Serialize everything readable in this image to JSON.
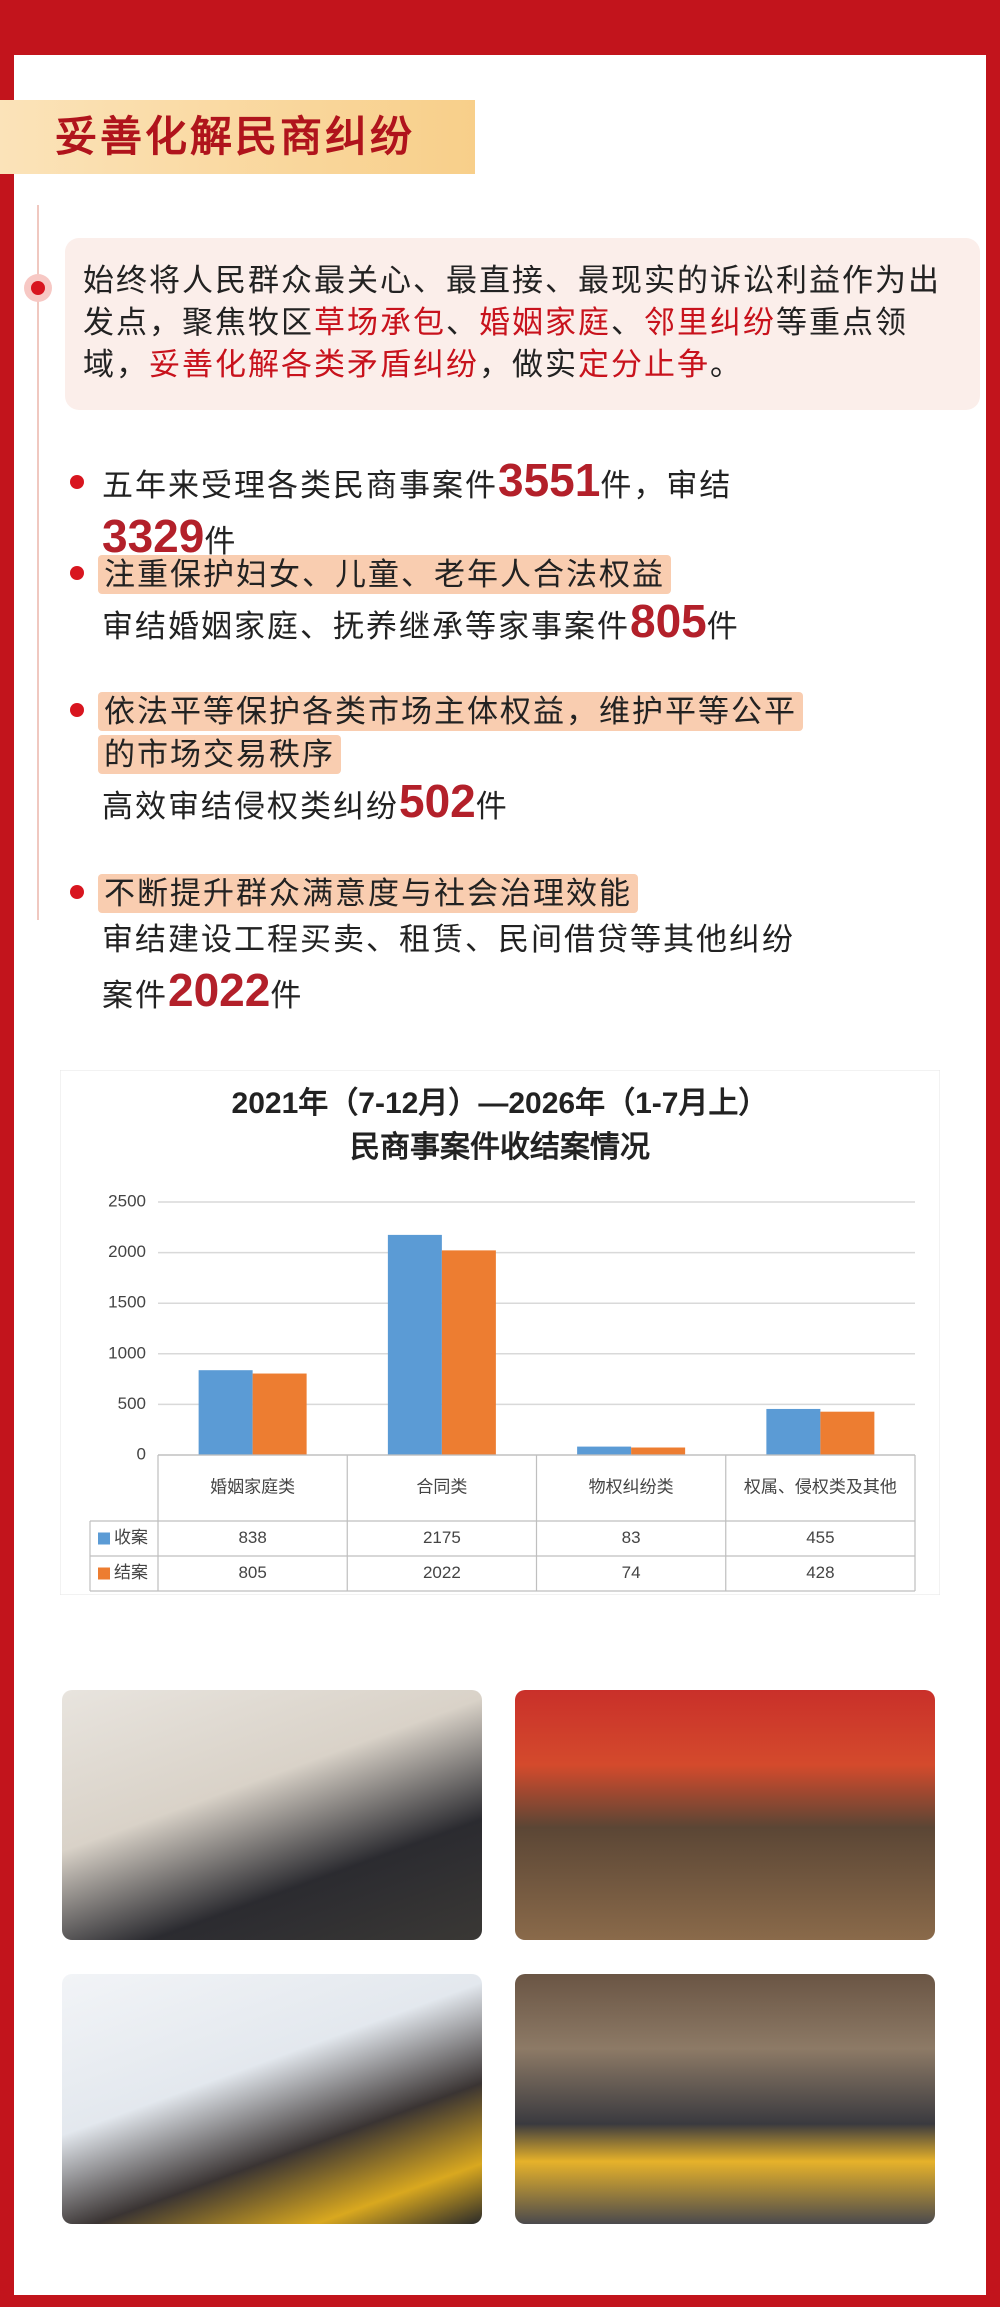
{
  "header": {
    "title": "妥善化解民商纠纷"
  },
  "intro": [
    {
      "text": "始终将人民群众最关心、最直接、最现实的诉讼利益作为出发点，聚焦牧区"
    },
    {
      "text": "草场承包",
      "highlight": true
    },
    {
      "text": "、"
    },
    {
      "text": "婚姻家庭",
      "highlight": true
    },
    {
      "text": "、"
    },
    {
      "text": "邻里纠纷",
      "highlight": true
    },
    {
      "text": "等重点领域，"
    },
    {
      "text": "妥善化解各类矛盾纠纷",
      "highlight": true
    },
    {
      "text": "，做实"
    },
    {
      "text": "定分止争",
      "highlight": true
    },
    {
      "text": "。"
    }
  ],
  "bullets": [
    {
      "parts": [
        {
          "text": "五年来受理各类民商事案件"
        },
        {
          "number": 3551
        },
        {
          "text": "件，审结"
        },
        {
          "number": 3329
        },
        {
          "text": "件"
        }
      ]
    },
    {
      "heading": "注重保护妇女、儿童、老年人合法权益",
      "parts": [
        {
          "text": "审结婚姻家庭、抚养继承等家事案件"
        },
        {
          "number": 805
        },
        {
          "text": "件"
        }
      ]
    },
    {
      "heading": "依法平等保护各类市场主体权益，维护平等公平的市场交易秩序",
      "parts": [
        {
          "text": "高效审结侵权类纠纷"
        },
        {
          "number": 502
        },
        {
          "text": "件"
        }
      ]
    },
    {
      "heading": "不断提升群众满意度与社会治理效能",
      "parts": [
        {
          "text": "审结建设工程买卖、租赁、民间借贷等其他纠纷案件"
        },
        {
          "number": 2022
        },
        {
          "text": "件"
        }
      ]
    }
  ],
  "chart_data": {
    "type": "bar",
    "title_lines": [
      "2021年（7-12月）—2026年（1-7月上）",
      "民商事案件收结案情况"
    ],
    "categories": [
      "婚姻家庭类",
      "合同类",
      "物权纠纷类",
      "权属、侵权类及其他"
    ],
    "series": [
      {
        "name": "收案",
        "color": "#5b9bd5",
        "values": [
          838,
          2175,
          83,
          455
        ]
      },
      {
        "name": "结案",
        "color": "#ed7d31",
        "values": [
          805,
          2022,
          74,
          428
        ]
      }
    ],
    "ylim": [
      0,
      2500
    ],
    "yticks": [
      0,
      500,
      1000,
      1500,
      2000,
      2500
    ],
    "grid": true,
    "data_table": true
  }
}
